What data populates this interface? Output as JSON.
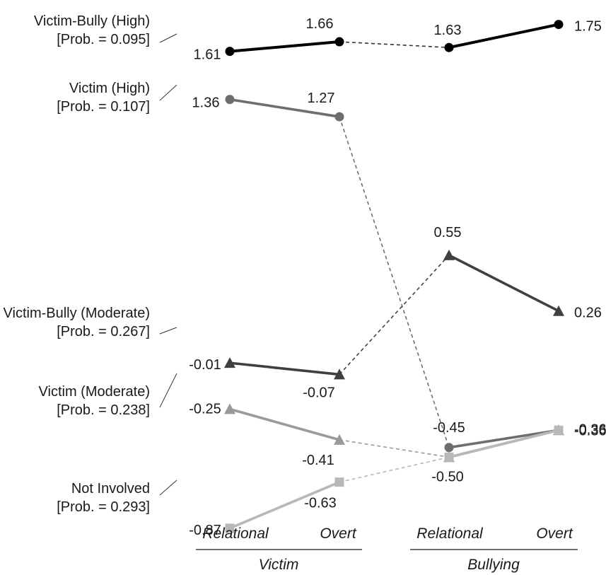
{
  "chart_data": {
    "type": "line",
    "categories": [
      "Relational",
      "Overt",
      "Relational",
      "Overt"
    ],
    "groups": [
      {
        "label": "Victim",
        "categories": [
          "Relational",
          "Overt"
        ]
      },
      {
        "label": "Bullying",
        "categories": [
          "Relational",
          "Overt"
        ]
      }
    ],
    "series": [
      {
        "name": "Victim-Bully (High)",
        "prob": "[Prob. = 0.095]",
        "values": [
          1.61,
          1.66,
          1.63,
          1.75
        ],
        "labels": [
          "1.61",
          "1.66",
          "1.63",
          "1.75"
        ],
        "marker": "circle",
        "color": "#000000"
      },
      {
        "name": "Victim (High)",
        "prob": "[Prob. = 0.107]",
        "values": [
          1.36,
          1.27,
          -0.45,
          -0.36
        ],
        "labels": [
          "1.36",
          "1.27",
          "-0.45",
          "-0.36"
        ],
        "marker": "circle",
        "color": "#6e6e6e"
      },
      {
        "name": "Victim-Bully (Moderate)",
        "prob": "[Prob. = 0.267]",
        "values": [
          -0.01,
          -0.07,
          0.55,
          0.26
        ],
        "labels": [
          "-0.01",
          "-0.07",
          "0.55",
          "0.26"
        ],
        "marker": "triangle",
        "color": "#404040"
      },
      {
        "name": "Victim (Moderate)",
        "prob": "[Prob. = 0.238]",
        "values": [
          -0.25,
          -0.41,
          -0.5,
          -0.36
        ],
        "labels": [
          "-0.25",
          "-0.41",
          "-0.50",
          "-0.36"
        ],
        "marker": "triangle",
        "color": "#9a9a9a"
      },
      {
        "name": "Not Involved",
        "prob": "[Prob. = 0.293]",
        "values": [
          -0.87,
          -0.63,
          -0.5,
          -0.36
        ],
        "labels": [
          "-0.87",
          "-0.63",
          "",
          ""
        ],
        "marker": "square",
        "color": "#b8b8b8"
      }
    ],
    "title": "",
    "xlabel": "",
    "ylabel": "",
    "grid": false,
    "legend": "left"
  }
}
